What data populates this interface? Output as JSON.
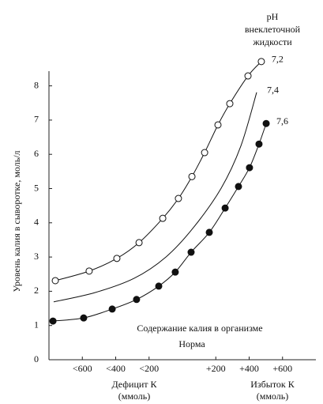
{
  "chart_data": {
    "type": "line",
    "y_label": "Уровень калия в сыворотке,  моль/л",
    "legend_title": [
      "pH",
      "внеклеточной",
      "жидкости"
    ],
    "annotation": [
      "Содержание калия в организме",
      "Норма"
    ],
    "x_groups": [
      {
        "label": "Дефицит К",
        "unit": "(ммоль)"
      },
      {
        "label": "Избыток К",
        "unit": "(ммоль)"
      }
    ],
    "xlim": [
      -800,
      800
    ],
    "xticks": [
      {
        "value": -600,
        "label": "<600"
      },
      {
        "value": -400,
        "label": "<400"
      },
      {
        "value": -200,
        "label": "<200"
      },
      {
        "value": 200,
        "label": "+200"
      },
      {
        "value": 400,
        "label": "+400"
      },
      {
        "value": 600,
        "label": "+600"
      }
    ],
    "ylim": [
      0,
      8.5
    ],
    "yticks": [
      0,
      1,
      2,
      3,
      4,
      5,
      6,
      7,
      8
    ],
    "series": [
      {
        "name": "7,2",
        "color": "#111111",
        "marker": "open",
        "x": [
          -762,
          -559,
          -393,
          -260,
          -118,
          -24,
          57,
          133,
          213,
          284,
          393,
          473
        ],
        "values": [
          2.31,
          2.59,
          2.96,
          3.42,
          4.13,
          4.71,
          5.35,
          6.05,
          6.86,
          7.48,
          8.29,
          8.71
        ]
      },
      {
        "name": "7,4",
        "color": "#111111",
        "marker": "none",
        "x": [
          -772,
          -525,
          -289,
          -99,
          66,
          232,
          350,
          445
        ],
        "values": [
          1.69,
          1.96,
          2.38,
          3.0,
          3.86,
          5.01,
          6.24,
          7.81
        ]
      },
      {
        "name": "7,6",
        "color": "#111111",
        "marker": "filled",
        "x": [
          -776,
          -592,
          -421,
          -275,
          -142,
          -43,
          52,
          161,
          256,
          336,
          402,
          459,
          502
        ],
        "values": [
          1.13,
          1.22,
          1.48,
          1.76,
          2.15,
          2.56,
          3.14,
          3.72,
          4.43,
          5.06,
          5.61,
          6.3,
          6.9
        ]
      }
    ]
  }
}
